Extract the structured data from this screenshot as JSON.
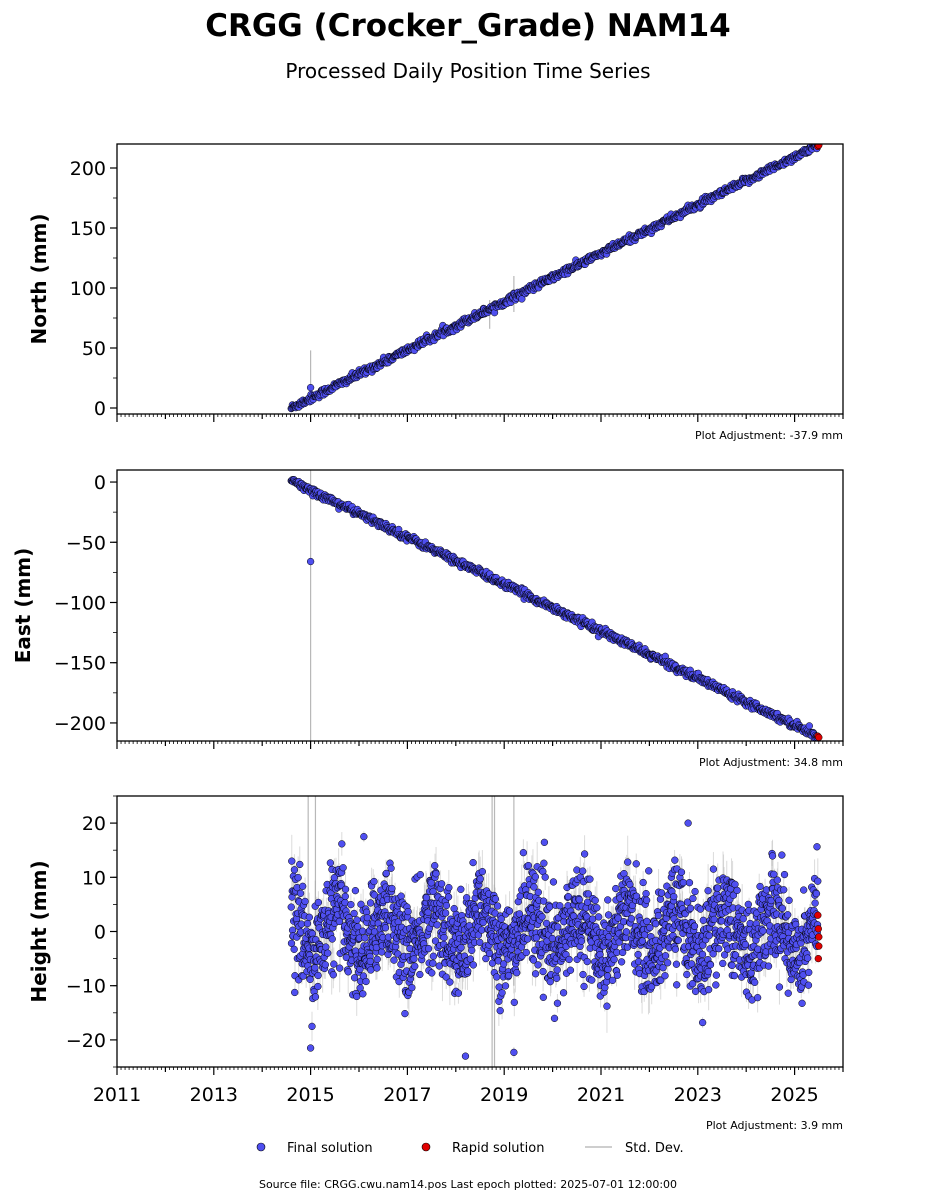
{
  "title": "CRGG (Crocker_Grade) NAM14",
  "subtitle": "Processed Daily Position Time Series",
  "footer": "Source file: CRGG.cwu.nam14.pos  Last epoch plotted: 2025-07-01 12:00:00",
  "legend": {
    "final": "Final solution",
    "rapid": "Rapid solution",
    "std": "Std. Dev."
  },
  "colors": {
    "final": "#4f4ff0",
    "rapid": "#e00000",
    "std": "#bdbdbd",
    "outline": "#000000"
  },
  "x_tick_labels": [
    "2011",
    "2013",
    "2015",
    "2017",
    "2019",
    "2021",
    "2023",
    "2025"
  ],
  "chart_data": [
    {
      "type": "scatter",
      "ylabel": "North (mm)",
      "xlim": [
        2011.0,
        2026.0
      ],
      "ylim": [
        -5,
        220
      ],
      "yticks": [
        0,
        50,
        100,
        150,
        200
      ],
      "ytick_labels": [
        "0",
        "50",
        "100",
        "150",
        "200"
      ],
      "adjustment": "Plot Adjustment: -37.9 mm",
      "series": [
        {
          "name": "Final solution",
          "trend": {
            "x": [
              2014.6,
              2025.48
            ],
            "y": [
              0,
              219
            ]
          },
          "noise_mm": 1.5,
          "outliers": [
            {
              "x": 2015.0,
              "y": 17
            }
          ]
        },
        {
          "name": "Rapid solution",
          "x": [
            2025.48,
            2025.5
          ],
          "y": [
            218,
            219
          ]
        }
      ],
      "std_dev_spikes": [
        {
          "x": 2015.0,
          "y": [
            10,
            48
          ]
        },
        {
          "x": 2018.7,
          "y": [
            66,
            90
          ]
        },
        {
          "x": 2019.2,
          "y": [
            80,
            110
          ]
        }
      ]
    },
    {
      "type": "scatter",
      "ylabel": "East (mm)",
      "xlim": [
        2011.0,
        2026.0
      ],
      "ylim": [
        -215,
        10
      ],
      "yticks": [
        0,
        -50,
        -100,
        -150,
        -200
      ],
      "ytick_labels": [
        "0",
        "−50",
        "−100",
        "−150",
        "−200"
      ],
      "adjustment": "Plot Adjustment: 34.8 mm",
      "series": [
        {
          "name": "Final solution",
          "trend": {
            "x": [
              2014.6,
              2025.48
            ],
            "y": [
              1,
              -211
            ]
          },
          "noise_mm": 1.5,
          "outliers": [
            {
              "x": 2015.0,
              "y": -66
            }
          ]
        },
        {
          "name": "Rapid solution",
          "x": [
            2025.48,
            2025.5
          ],
          "y": [
            -211,
            -212
          ]
        }
      ],
      "std_dev_spikes": [
        {
          "x": 2015.0,
          "y": [
            -215,
            10
          ]
        }
      ]
    },
    {
      "type": "scatter",
      "ylabel": "Height (mm)",
      "xlim": [
        2011.0,
        2026.0
      ],
      "ylim": [
        -25,
        25
      ],
      "yticks": [
        -20,
        -10,
        0,
        10,
        20
      ],
      "ytick_labels": [
        "−20",
        "−10",
        "0",
        "10",
        "20"
      ],
      "adjustment": "Plot Adjustment: 3.9 mm",
      "series": [
        {
          "name": "Final solution",
          "x_range": [
            2014.6,
            2025.48
          ],
          "mean_mm": 0,
          "seasonal_amplitude_mm": 4,
          "scatter_mm": 4.5,
          "outliers": [
            {
              "x": 2015.0,
              "y": -21.5
            },
            {
              "x": 2016.1,
              "y": 17.5
            },
            {
              "x": 2018.2,
              "y": -23
            },
            {
              "x": 2019.2,
              "y": -22.3
            },
            {
              "x": 2022.8,
              "y": 20
            },
            {
              "x": 2023.1,
              "y": -16.8
            }
          ]
        },
        {
          "name": "Rapid solution",
          "x": [
            2025.48,
            2025.49,
            2025.5,
            2025.5,
            2025.49
          ],
          "y": [
            3,
            0.5,
            -1,
            -2.7,
            -5
          ]
        }
      ],
      "std_dev_spikes": [
        {
          "x": 2014.95,
          "y": [
            -8,
            25
          ]
        },
        {
          "x": 2015.1,
          "y": [
            -5,
            25
          ]
        },
        {
          "x": 2018.75,
          "y": [
            -25,
            25
          ]
        },
        {
          "x": 2018.8,
          "y": [
            -25,
            25
          ]
        },
        {
          "x": 2019.2,
          "y": [
            -10,
            25
          ]
        }
      ]
    }
  ]
}
